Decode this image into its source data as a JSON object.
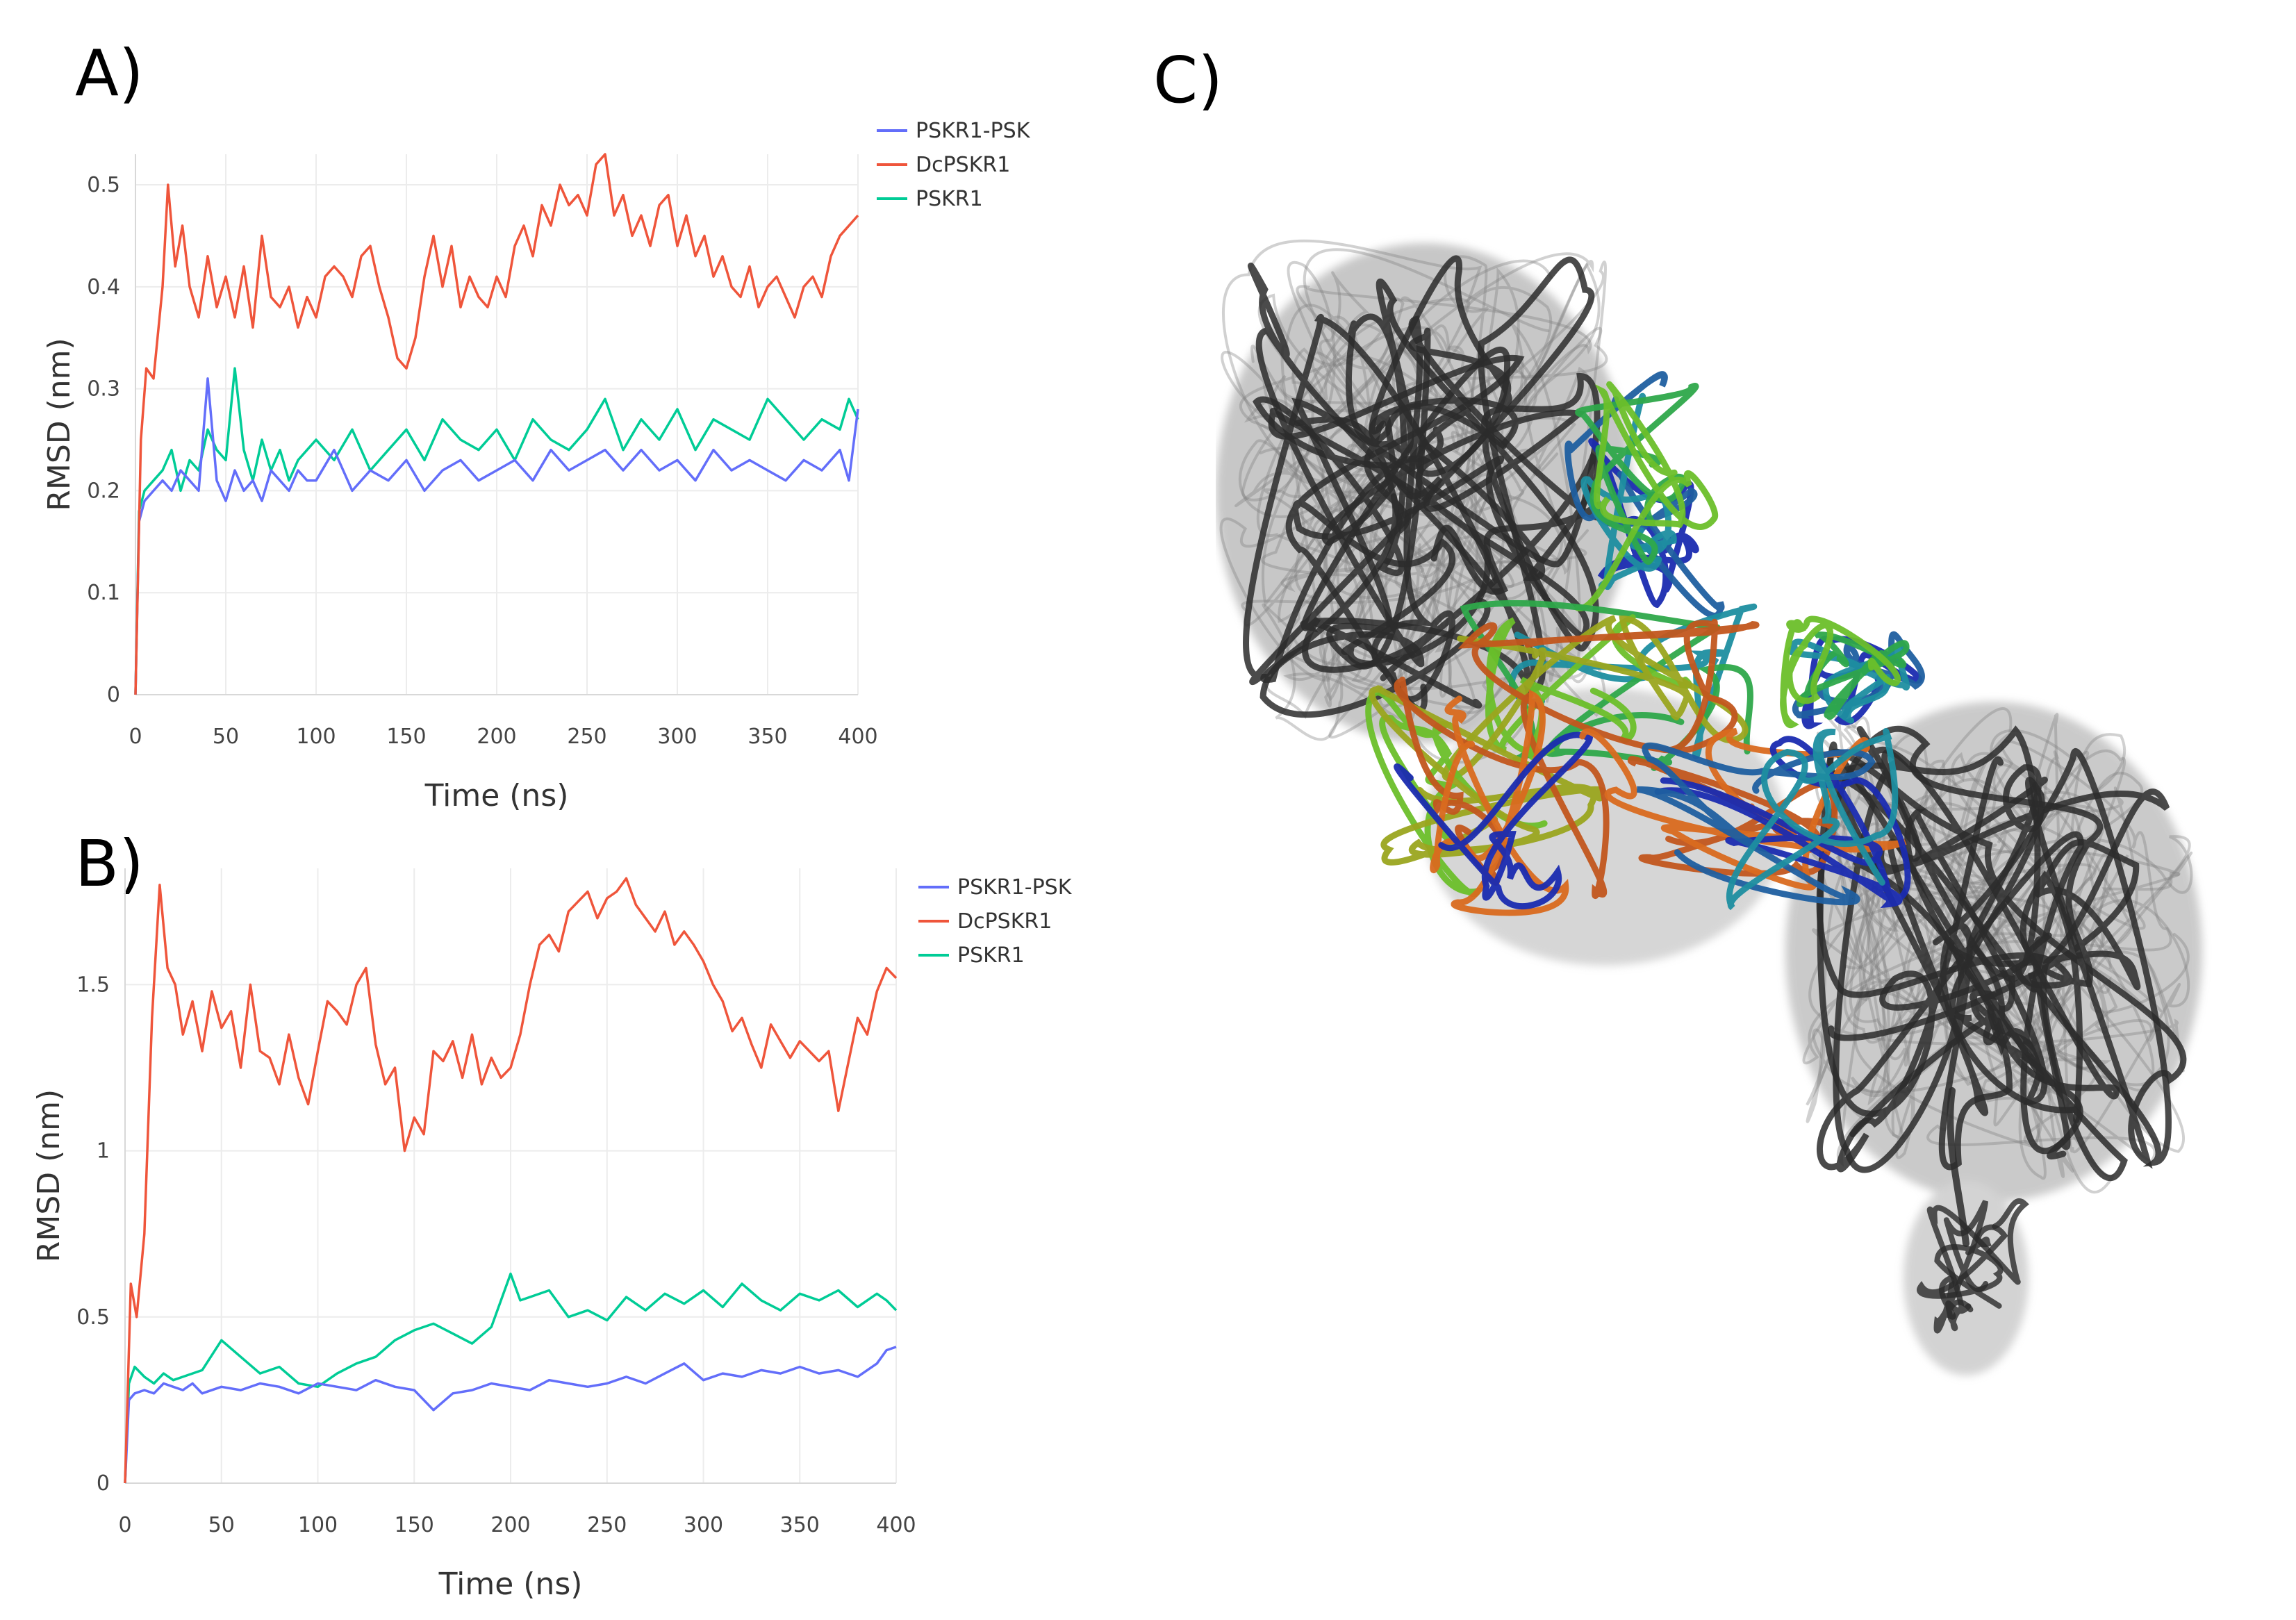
{
  "panels": {
    "a_label": "A)",
    "b_label": "B)",
    "c_label": "C)"
  },
  "chart_data": [
    {
      "id": "A",
      "type": "line",
      "xlabel": "Time (ns)",
      "ylabel": "RMSD (nm)",
      "xlim": [
        0,
        400
      ],
      "ylim": [
        0,
        0.53
      ],
      "xticks": [
        0,
        50,
        100,
        150,
        200,
        250,
        300,
        350,
        400
      ],
      "yticks": [
        0,
        0.1,
        0.2,
        0.3,
        0.4,
        0.5
      ],
      "grid": true,
      "legend_position": "top-right",
      "series": [
        {
          "name": "PSKR1-PSK",
          "color": "#636efa",
          "x": [
            0,
            2,
            5,
            10,
            15,
            20,
            25,
            30,
            35,
            40,
            45,
            50,
            55,
            60,
            65,
            70,
            75,
            80,
            85,
            90,
            95,
            100,
            110,
            120,
            130,
            140,
            150,
            160,
            170,
            180,
            190,
            200,
            210,
            220,
            230,
            240,
            250,
            260,
            270,
            280,
            290,
            300,
            310,
            320,
            330,
            340,
            350,
            360,
            370,
            380,
            390,
            395,
            400
          ],
          "y": [
            0,
            0.17,
            0.19,
            0.2,
            0.21,
            0.2,
            0.22,
            0.21,
            0.2,
            0.31,
            0.21,
            0.19,
            0.22,
            0.2,
            0.21,
            0.19,
            0.22,
            0.21,
            0.2,
            0.22,
            0.21,
            0.21,
            0.24,
            0.2,
            0.22,
            0.21,
            0.23,
            0.2,
            0.22,
            0.23,
            0.21,
            0.22,
            0.23,
            0.21,
            0.24,
            0.22,
            0.23,
            0.24,
            0.22,
            0.24,
            0.22,
            0.23,
            0.21,
            0.24,
            0.22,
            0.23,
            0.22,
            0.21,
            0.23,
            0.22,
            0.24,
            0.21,
            0.28
          ]
        },
        {
          "name": "DcPSKR1",
          "color": "#ef553b",
          "x": [
            0,
            3,
            6,
            10,
            15,
            18,
            22,
            26,
            30,
            35,
            40,
            45,
            50,
            55,
            60,
            65,
            70,
            75,
            80,
            85,
            90,
            95,
            100,
            105,
            110,
            115,
            120,
            125,
            130,
            135,
            140,
            145,
            150,
            155,
            160,
            165,
            170,
            175,
            180,
            185,
            190,
            195,
            200,
            205,
            210,
            215,
            220,
            225,
            230,
            235,
            240,
            245,
            250,
            255,
            260,
            265,
            270,
            275,
            280,
            285,
            290,
            295,
            300,
            305,
            310,
            315,
            320,
            325,
            330,
            335,
            340,
            345,
            350,
            355,
            360,
            365,
            370,
            375,
            380,
            385,
            390,
            395,
            400
          ],
          "y": [
            0,
            0.25,
            0.32,
            0.31,
            0.4,
            0.5,
            0.42,
            0.46,
            0.4,
            0.37,
            0.43,
            0.38,
            0.41,
            0.37,
            0.42,
            0.36,
            0.45,
            0.39,
            0.38,
            0.4,
            0.36,
            0.39,
            0.37,
            0.41,
            0.42,
            0.41,
            0.39,
            0.43,
            0.44,
            0.4,
            0.37,
            0.33,
            0.32,
            0.35,
            0.41,
            0.45,
            0.4,
            0.44,
            0.38,
            0.41,
            0.39,
            0.38,
            0.41,
            0.39,
            0.44,
            0.46,
            0.43,
            0.48,
            0.46,
            0.5,
            0.48,
            0.49,
            0.47,
            0.52,
            0.53,
            0.47,
            0.49,
            0.45,
            0.47,
            0.44,
            0.48,
            0.49,
            0.44,
            0.47,
            0.43,
            0.45,
            0.41,
            0.43,
            0.4,
            0.39,
            0.42,
            0.38,
            0.4,
            0.41,
            0.39,
            0.37,
            0.4,
            0.41,
            0.39,
            0.43,
            0.45,
            0.46,
            0.47
          ]
        },
        {
          "name": "PSKR1",
          "color": "#00cc96",
          "x": [
            0,
            2,
            5,
            10,
            15,
            20,
            25,
            30,
            35,
            40,
            45,
            50,
            55,
            60,
            65,
            70,
            75,
            80,
            85,
            90,
            95,
            100,
            110,
            120,
            130,
            140,
            150,
            160,
            170,
            180,
            190,
            200,
            210,
            220,
            230,
            240,
            250,
            260,
            270,
            280,
            290,
            300,
            310,
            320,
            330,
            340,
            350,
            360,
            370,
            380,
            390,
            395,
            400
          ],
          "y": [
            0,
            0.18,
            0.2,
            0.21,
            0.22,
            0.24,
            0.2,
            0.23,
            0.22,
            0.26,
            0.24,
            0.23,
            0.32,
            0.24,
            0.21,
            0.25,
            0.22,
            0.24,
            0.21,
            0.23,
            0.24,
            0.25,
            0.23,
            0.26,
            0.22,
            0.24,
            0.26,
            0.23,
            0.27,
            0.25,
            0.24,
            0.26,
            0.23,
            0.27,
            0.25,
            0.24,
            0.26,
            0.29,
            0.24,
            0.27,
            0.25,
            0.28,
            0.24,
            0.27,
            0.26,
            0.25,
            0.29,
            0.27,
            0.25,
            0.27,
            0.26,
            0.29,
            0.27
          ]
        }
      ]
    },
    {
      "id": "B",
      "type": "line",
      "xlabel": "Time (ns)",
      "ylabel": "RMSD (nm)",
      "xlim": [
        0,
        400
      ],
      "ylim": [
        0,
        1.85
      ],
      "xticks": [
        0,
        50,
        100,
        150,
        200,
        250,
        300,
        350,
        400
      ],
      "yticks": [
        0,
        0.5,
        1,
        1.5
      ],
      "grid": true,
      "legend_position": "top-right",
      "series": [
        {
          "name": "PSKR1-PSK",
          "color": "#636efa",
          "x": [
            0,
            2,
            5,
            10,
            15,
            20,
            25,
            30,
            35,
            40,
            50,
            60,
            70,
            80,
            90,
            100,
            110,
            120,
            130,
            140,
            150,
            160,
            170,
            180,
            190,
            200,
            210,
            220,
            230,
            240,
            250,
            260,
            270,
            280,
            290,
            300,
            310,
            320,
            330,
            340,
            350,
            360,
            370,
            380,
            390,
            395,
            400
          ],
          "y": [
            0,
            0.25,
            0.27,
            0.28,
            0.27,
            0.3,
            0.29,
            0.28,
            0.3,
            0.27,
            0.29,
            0.28,
            0.3,
            0.29,
            0.27,
            0.3,
            0.29,
            0.28,
            0.31,
            0.29,
            0.28,
            0.22,
            0.27,
            0.28,
            0.3,
            0.29,
            0.28,
            0.31,
            0.3,
            0.29,
            0.3,
            0.32,
            0.3,
            0.33,
            0.36,
            0.31,
            0.33,
            0.32,
            0.34,
            0.33,
            0.35,
            0.33,
            0.34,
            0.32,
            0.36,
            0.4,
            0.41
          ]
        },
        {
          "name": "DcPSKR1",
          "color": "#ef553b",
          "x": [
            0,
            3,
            6,
            10,
            14,
            18,
            22,
            26,
            30,
            35,
            40,
            45,
            50,
            55,
            60,
            65,
            70,
            75,
            80,
            85,
            90,
            95,
            100,
            105,
            110,
            115,
            120,
            125,
            130,
            135,
            140,
            145,
            150,
            155,
            160,
            165,
            170,
            175,
            180,
            185,
            190,
            195,
            200,
            205,
            210,
            215,
            220,
            225,
            230,
            235,
            240,
            245,
            250,
            255,
            260,
            265,
            270,
            275,
            280,
            285,
            290,
            295,
            300,
            305,
            310,
            315,
            320,
            325,
            330,
            335,
            340,
            345,
            350,
            355,
            360,
            365,
            370,
            375,
            380,
            385,
            390,
            395,
            400
          ],
          "y": [
            0,
            0.6,
            0.5,
            0.75,
            1.4,
            1.8,
            1.55,
            1.5,
            1.35,
            1.45,
            1.3,
            1.48,
            1.37,
            1.42,
            1.25,
            1.5,
            1.3,
            1.28,
            1.2,
            1.35,
            1.22,
            1.14,
            1.3,
            1.45,
            1.42,
            1.38,
            1.5,
            1.55,
            1.32,
            1.2,
            1.25,
            1.0,
            1.1,
            1.05,
            1.3,
            1.27,
            1.33,
            1.22,
            1.35,
            1.2,
            1.28,
            1.22,
            1.25,
            1.35,
            1.5,
            1.62,
            1.65,
            1.6,
            1.72,
            1.75,
            1.78,
            1.7,
            1.76,
            1.78,
            1.82,
            1.74,
            1.7,
            1.66,
            1.72,
            1.62,
            1.66,
            1.62,
            1.57,
            1.5,
            1.45,
            1.36,
            1.4,
            1.32,
            1.25,
            1.38,
            1.33,
            1.28,
            1.33,
            1.3,
            1.27,
            1.3,
            1.12,
            1.26,
            1.4,
            1.35,
            1.48,
            1.55,
            1.52
          ]
        },
        {
          "name": "PSKR1",
          "color": "#00cc96",
          "x": [
            0,
            2,
            5,
            10,
            15,
            20,
            25,
            30,
            40,
            50,
            60,
            70,
            80,
            90,
            100,
            110,
            120,
            130,
            140,
            150,
            160,
            170,
            180,
            190,
            200,
            205,
            210,
            220,
            230,
            240,
            250,
            260,
            270,
            280,
            290,
            300,
            310,
            320,
            330,
            340,
            350,
            360,
            370,
            380,
            390,
            395,
            400
          ],
          "y": [
            0,
            0.3,
            0.35,
            0.32,
            0.3,
            0.33,
            0.31,
            0.32,
            0.34,
            0.43,
            0.38,
            0.33,
            0.35,
            0.3,
            0.29,
            0.33,
            0.36,
            0.38,
            0.43,
            0.46,
            0.48,
            0.45,
            0.42,
            0.47,
            0.63,
            0.55,
            0.56,
            0.58,
            0.5,
            0.52,
            0.49,
            0.56,
            0.52,
            0.57,
            0.54,
            0.58,
            0.53,
            0.6,
            0.55,
            0.52,
            0.57,
            0.55,
            0.58,
            0.53,
            0.57,
            0.55,
            0.52
          ]
        }
      ]
    }
  ],
  "colors": {
    "pskr1_psk": "#636efa",
    "dcpskr1": "#ef553b",
    "pskr1": "#00cc96",
    "protein_dark": "#1e1e1e"
  }
}
